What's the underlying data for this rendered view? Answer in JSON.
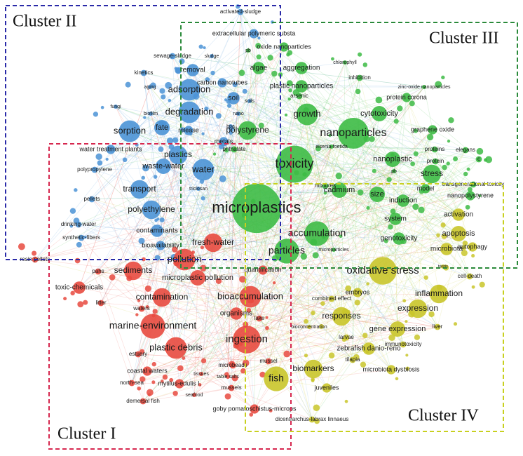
{
  "clusters": [
    {
      "label": "Cluster I",
      "color": "#e84a3f",
      "box_color": "#d6284f",
      "nodes": [
        "fresh-water",
        "pollution",
        "quantification",
        "resin pellets",
        "pahs",
        "sediments",
        "microplastic pollution",
        "toxic-chemicals",
        "bioaccumulation",
        "contamination",
        "litter",
        "waters",
        "organisms",
        "lake",
        "marine-environment",
        "ingestion",
        "plastic debris",
        "estuary",
        "mussel",
        "coastal waters",
        "microbeads",
        "tissues",
        "table salts",
        "north-sea",
        "mytilus-edulis l.",
        "mussels",
        "seafood",
        "demersal fish",
        "goby pomatoschistus-microps"
      ]
    },
    {
      "label": "Cluster II",
      "color": "#4b93d6",
      "box_color": "#2a2aa8",
      "nodes": [
        "activated-sludge",
        "extracellular polymeric substa",
        "sewage-sludge",
        "sludge",
        "removal",
        "kinetics",
        "carbon nanotubes",
        "aging",
        "adsorption",
        "soil",
        "soils",
        "fungi",
        "biofilm",
        "degradation",
        "nano",
        "fate",
        "release",
        "bpa",
        "sorption",
        "metals",
        "water treatment plants",
        "plastics",
        "waste-water",
        "polypropylene",
        "water",
        "transport",
        "triclosan",
        "pellets",
        "polyethylene",
        "drinking-water",
        "contaminants",
        "synthetic-fibers",
        "bioavailability"
      ]
    },
    {
      "label": "Cluster III",
      "color": "#3dbb45",
      "box_color": "#2a8a3a",
      "nodes": [
        "pb",
        "oxide nanoparticles",
        "chlorophyll",
        "algae",
        "aggregation",
        "inhibition",
        "plastic nanoparticles",
        "zinc-oxide nanoparticles",
        "arsenic",
        "protein corona",
        "growth",
        "cytotoxicity",
        "polystyrene",
        "nanoparticles",
        "graphene oxide",
        "phthalate",
        "eisenia-foetida",
        "proteins",
        "elegans",
        "c",
        "protein",
        "toxicity",
        "nanoplastic",
        "pb",
        "stress",
        "transgenerational toxicity",
        "mixtures",
        "model",
        "nanopolystyrene",
        "cadmium",
        "size",
        "induction",
        "microplastics",
        "system",
        "accumulation",
        "genotoxicity",
        "particles",
        "microparticles"
      ]
    },
    {
      "label": "Cluster IV",
      "color": "#c9c52a",
      "box_color": "#c8d020",
      "nodes": [
        "activation",
        "apoptosis",
        "autophagy",
        "microbiota",
        "oxidative stress",
        "testis",
        "cell-death",
        "embryos",
        "inflammation",
        "combined effect",
        "expression",
        "responses",
        "bioconcentration",
        "gene expression",
        "liver",
        "larvae",
        "zebrafish danio-rerio",
        "immunotoxicity",
        "tilapia",
        "biomarkers",
        "microbiota dysbiosis",
        "fish",
        "juveniles",
        "dicentrarchus-labrax linnaeus"
      ]
    }
  ]
}
